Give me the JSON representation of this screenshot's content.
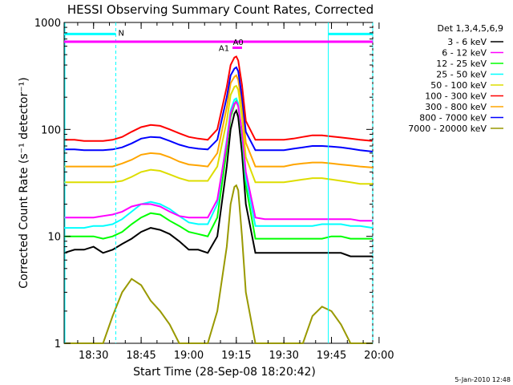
{
  "chart_data": {
    "type": "line",
    "title": "HESSI Observing Summary Count Rates, Corrected",
    "xlabel": "Start Time (28-Sep-08 18:20:42)",
    "ylabel": "Corrected Count Rate (s⁻¹ detector⁻¹)",
    "yscale": "log",
    "ylim": [
      1,
      1000
    ],
    "xlim": [
      18.3453,
      19.9667
    ],
    "x_ticks": [
      18.5,
      18.75,
      19.0,
      19.25,
      19.5,
      19.75,
      20.0
    ],
    "x_tick_labels": [
      "18:30",
      "18:45",
      "19:00",
      "19:15",
      "19:30",
      "19:45",
      "20:00"
    ],
    "y_ticks": [
      1,
      10,
      100,
      1000
    ],
    "y_tick_labels": [
      "1",
      "10",
      "100",
      "1000"
    ],
    "grid": false,
    "legend_title": "Det 1,3,4,5,6,9",
    "legend_position": "right",
    "date_stamp": "5-Jan-2010 12:48",
    "x": [
      18.3453,
      18.4,
      18.45,
      18.5,
      18.55,
      18.6,
      18.65,
      18.7,
      18.75,
      18.8,
      18.85,
      18.9,
      18.95,
      19.0,
      19.05,
      19.1,
      19.15,
      19.2,
      19.22,
      19.24,
      19.25,
      19.26,
      19.28,
      19.3,
      19.35,
      19.4,
      19.45,
      19.5,
      19.55,
      19.6,
      19.65,
      19.7,
      19.75,
      19.8,
      19.85,
      19.9,
      19.9667
    ],
    "series": [
      {
        "name": "3 - 6 keV",
        "color": "#000000",
        "values": [
          7.0,
          7.5,
          7.5,
          8.0,
          7.0,
          7.5,
          8.5,
          9.5,
          11.0,
          12.0,
          11.5,
          10.5,
          9.0,
          7.5,
          7.5,
          7.0,
          10.0,
          45,
          100,
          140,
          150,
          130,
          60,
          20,
          7.0,
          7.0,
          7.0,
          7.0,
          7.0,
          7.0,
          7.0,
          7.0,
          7.0,
          7.0,
          6.5,
          6.5,
          6.5
        ]
      },
      {
        "name": "6 - 12 keV",
        "color": "#ff00ff",
        "values": [
          15,
          15,
          15,
          15,
          15.5,
          16,
          17,
          19,
          20,
          20,
          19,
          17,
          15.5,
          15,
          15,
          15,
          22,
          75,
          140,
          175,
          180,
          165,
          95,
          40,
          15,
          14.5,
          14.5,
          14.5,
          14.5,
          14.5,
          14.5,
          14.5,
          14.5,
          14.5,
          14.5,
          14,
          14
        ]
      },
      {
        "name": "12 - 25 keV",
        "color": "#00ff00",
        "values": [
          10,
          10,
          10,
          10,
          9.5,
          10,
          11,
          13,
          15,
          16.5,
          16,
          14,
          12.5,
          11,
          10.5,
          10,
          15,
          65,
          130,
          170,
          185,
          165,
          85,
          30,
          9.5,
          9.5,
          9.5,
          9.5,
          9.5,
          9.5,
          9.5,
          9.5,
          10,
          10,
          9.5,
          9.5,
          9.5
        ]
      },
      {
        "name": "25 - 50 keV",
        "color": "#00ffff",
        "values": [
          12,
          12,
          12,
          12.5,
          12.5,
          13,
          14.5,
          17,
          20,
          21,
          20,
          18,
          15.5,
          13.5,
          13,
          13,
          20,
          80,
          150,
          190,
          195,
          175,
          90,
          35,
          12.5,
          12.5,
          12.5,
          12.5,
          12.5,
          12.5,
          12.5,
          13,
          13,
          13,
          12.5,
          12.5,
          12
        ]
      },
      {
        "name": "50 - 100 keV",
        "color": "#dddd00",
        "values": [
          32,
          32,
          32,
          32,
          32,
          32,
          33,
          36,
          40,
          42,
          41,
          38,
          35,
          33,
          33,
          33,
          45,
          120,
          210,
          250,
          255,
          235,
          130,
          55,
          32,
          32,
          32,
          32,
          33,
          34,
          35,
          35,
          34,
          33,
          32,
          31,
          31
        ]
      },
      {
        "name": "100 - 300 keV",
        "color": "#ff0000",
        "values": [
          80,
          80,
          78,
          78,
          78,
          80,
          85,
          95,
          105,
          110,
          108,
          100,
          92,
          85,
          82,
          80,
          100,
          250,
          400,
          470,
          480,
          440,
          260,
          120,
          80,
          80,
          80,
          80,
          82,
          85,
          88,
          88,
          86,
          84,
          82,
          80,
          78
        ]
      },
      {
        "name": "300 - 800 keV",
        "color": "#ffa500",
        "values": [
          45,
          45,
          45,
          45,
          45,
          45,
          48,
          52,
          58,
          60,
          59,
          55,
          50,
          47,
          46,
          45,
          60,
          160,
          270,
          310,
          320,
          290,
          170,
          75,
          45,
          45,
          45,
          45,
          47,
          48,
          49,
          49,
          48,
          47,
          46,
          45,
          44
        ]
      },
      {
        "name": "800 - 7000 keV",
        "color": "#0000ff",
        "values": [
          65,
          65,
          64,
          64,
          64,
          65,
          68,
          74,
          82,
          85,
          84,
          78,
          72,
          68,
          66,
          65,
          80,
          200,
          320,
          370,
          380,
          350,
          200,
          95,
          64,
          64,
          64,
          64,
          66,
          68,
          70,
          70,
          69,
          68,
          66,
          64,
          62
        ]
      },
      {
        "name": "7000 - 20000 keV",
        "color": "#999900",
        "values": [
          1,
          1,
          1,
          1,
          1,
          1.8,
          3,
          4,
          3.5,
          2.5,
          2,
          1.5,
          1,
          1,
          1,
          1,
          2,
          8,
          20,
          29,
          30,
          27,
          10,
          3,
          1,
          1,
          1,
          1,
          1,
          1,
          1.8,
          2.2,
          2,
          1.5,
          1,
          1,
          1
        ]
      }
    ],
    "annotations": {
      "night_label": "N",
      "attenuator_label_a0": "A0",
      "attenuator_label_a1": "A1",
      "night_intervals": [
        [
          18.3453,
          18.6167
        ],
        [
          19.7333,
          19.9667
        ]
      ],
      "night_bar_value": 780,
      "attenuator_bar_value": 660,
      "attenuator_a0_interval": [
        18.3453,
        19.9667
      ],
      "attenuator_a1_interval": [
        19.23,
        19.28
      ],
      "attenuator_a1_value": 580,
      "dashed_times": [
        18.6167,
        19.9667
      ]
    }
  }
}
